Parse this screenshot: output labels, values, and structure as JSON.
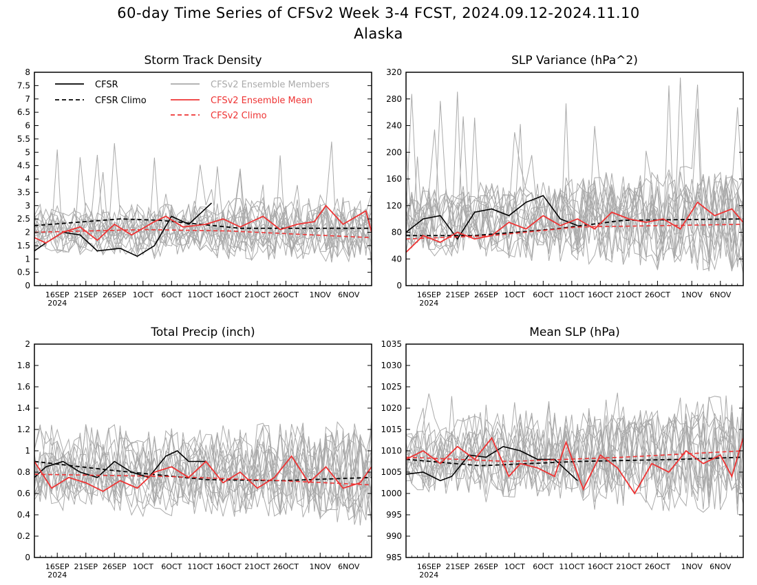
{
  "figure": {
    "title_line1": "60-day Time Series of CFSv2 Week 3-4 FCST, 2024.09.12-2024.11.10",
    "title_line2": "Alaska"
  },
  "legend": {
    "cfsr": "CFSR",
    "cfsr_climo": "CFSR Climo",
    "members": "CFSv2 Ensemble Members",
    "ens_mean": "CFSv2 Ensemble Mean",
    "cfsv2_climo": "CFSv2 Climo"
  },
  "colors": {
    "cfsr": "#000000",
    "members": "#aaaaaa",
    "ens_mean": "#ee3333",
    "cfsv2_climo": "#ee3333"
  },
  "x_axis": {
    "start": "2024-09-12",
    "end": "2024-11-10",
    "tick_labels": [
      "16SEP",
      "21SEP",
      "26SEP",
      "1OCT",
      "6OCT",
      "11OCT",
      "16OCT",
      "21OCT",
      "26OCT",
      "1NOV",
      "6NOV"
    ],
    "year_label": "2024"
  },
  "chart_data": [
    {
      "type": "line",
      "title": "Storm Track Density",
      "ylim": [
        0,
        8
      ],
      "yticks": [
        "0",
        "0.5",
        "1",
        "1.5",
        "2",
        "2.5",
        "3",
        "3.5",
        "4",
        "4.5",
        "5",
        "5.5",
        "6",
        "6.5",
        "7",
        "7.5",
        "8"
      ],
      "legend_placement": "top",
      "member_band": [
        1.2,
        3.0
      ],
      "member_peak": 5.5,
      "series": [
        {
          "name": "CFSR",
          "role": "cfsr",
          "x": [
            "2024-09-12",
            "2024-09-14",
            "2024-09-17",
            "2024-09-20",
            "2024-09-23",
            "2024-09-27",
            "2024-09-30",
            "2024-10-03",
            "2024-10-06",
            "2024-10-09",
            "2024-10-13"
          ],
          "values": [
            1.3,
            1.6,
            2.0,
            1.9,
            1.3,
            1.4,
            1.1,
            1.5,
            2.6,
            2.3,
            3.1
          ]
        },
        {
          "name": "CFSR Climo",
          "role": "cfsr_climo",
          "x": [
            "2024-09-12",
            "2024-09-27",
            "2024-10-04",
            "2024-10-18",
            "2024-11-10"
          ],
          "values": [
            2.25,
            2.5,
            2.45,
            2.15,
            2.15
          ]
        },
        {
          "name": "CFSv2 Ensemble Mean",
          "role": "ens_mean",
          "x": [
            "2024-09-12",
            "2024-09-14",
            "2024-09-17",
            "2024-09-20",
            "2024-09-23",
            "2024-09-26",
            "2024-09-29",
            "2024-10-03",
            "2024-10-05",
            "2024-10-08",
            "2024-10-12",
            "2024-10-15",
            "2024-10-18",
            "2024-10-22",
            "2024-10-25",
            "2024-10-28",
            "2024-10-31",
            "2024-11-02",
            "2024-11-05",
            "2024-11-09",
            "2024-11-10"
          ],
          "values": [
            1.8,
            1.6,
            2.0,
            2.2,
            1.7,
            2.3,
            1.9,
            2.4,
            2.6,
            2.2,
            2.3,
            2.5,
            2.2,
            2.6,
            2.1,
            2.3,
            2.4,
            3.0,
            2.3,
            2.8,
            2.0
          ]
        },
        {
          "name": "CFSv2 Climo",
          "role": "cfsv2_climo",
          "x": [
            "2024-09-12",
            "2024-10-01",
            "2024-10-16",
            "2024-11-10"
          ],
          "values": [
            2.0,
            2.1,
            2.05,
            1.8
          ]
        }
      ]
    },
    {
      "type": "line",
      "title": "SLP Variance (hPa^2)",
      "ylim": [
        0,
        320
      ],
      "yticks": [
        "0",
        "40",
        "80",
        "120",
        "160",
        "200",
        "240",
        "280",
        "320"
      ],
      "member_band": [
        45,
        160
      ],
      "member_peak": 320,
      "series": [
        {
          "name": "CFSR",
          "role": "cfsr",
          "x": [
            "2024-09-12",
            "2024-09-15",
            "2024-09-18",
            "2024-09-21",
            "2024-09-24",
            "2024-09-27",
            "2024-09-30",
            "2024-10-03",
            "2024-10-06",
            "2024-10-09",
            "2024-10-12"
          ],
          "values": [
            80,
            100,
            105,
            70,
            110,
            115,
            105,
            125,
            135,
            100,
            90
          ]
        },
        {
          "name": "CFSR Climo",
          "role": "cfsr_climo",
          "x": [
            "2024-09-12",
            "2024-09-24",
            "2024-10-08",
            "2024-10-20",
            "2024-11-10"
          ],
          "values": [
            75,
            75,
            85,
            98,
            100
          ]
        },
        {
          "name": "CFSv2 Ensemble Mean",
          "role": "ens_mean",
          "x": [
            "2024-09-12",
            "2024-09-15",
            "2024-09-18",
            "2024-09-21",
            "2024-09-24",
            "2024-09-27",
            "2024-09-30",
            "2024-10-03",
            "2024-10-06",
            "2024-10-09",
            "2024-10-12",
            "2024-10-15",
            "2024-10-18",
            "2024-10-21",
            "2024-10-24",
            "2024-10-27",
            "2024-10-30",
            "2024-11-02",
            "2024-11-05",
            "2024-11-08",
            "2024-11-10"
          ],
          "values": [
            50,
            75,
            65,
            80,
            70,
            75,
            95,
            85,
            105,
            90,
            100,
            85,
            110,
            100,
            95,
            100,
            85,
            125,
            105,
            115,
            95
          ]
        },
        {
          "name": "CFSv2 Climo",
          "role": "cfsv2_climo",
          "x": [
            "2024-09-12",
            "2024-09-27",
            "2024-10-12",
            "2024-11-10"
          ],
          "values": [
            70,
            75,
            88,
            92
          ]
        }
      ]
    },
    {
      "type": "line",
      "title": "Total Precip (inch)",
      "ylim": [
        0,
        2
      ],
      "yticks": [
        "0",
        "0.2",
        "0.4",
        "0.6",
        "0.8",
        "1",
        "1.2",
        "1.4",
        "1.6",
        "1.8",
        "2"
      ],
      "member_band": [
        0.45,
        1.15
      ],
      "member_peak": 1.25,
      "series": [
        {
          "name": "CFSR",
          "role": "cfsr",
          "x": [
            "2024-09-12",
            "2024-09-14",
            "2024-09-17",
            "2024-09-20",
            "2024-09-23",
            "2024-09-26",
            "2024-09-29",
            "2024-10-02",
            "2024-10-05",
            "2024-10-07",
            "2024-10-09",
            "2024-10-12"
          ],
          "values": [
            0.75,
            0.85,
            0.9,
            0.8,
            0.75,
            0.9,
            0.8,
            0.75,
            0.95,
            1.0,
            0.9,
            0.9
          ]
        },
        {
          "name": "CFSR Climo",
          "role": "cfsr_climo",
          "x": [
            "2024-09-12",
            "2024-09-25",
            "2024-10-12",
            "2024-10-25",
            "2024-11-10"
          ],
          "values": [
            0.9,
            0.82,
            0.73,
            0.72,
            0.75
          ]
        },
        {
          "name": "CFSv2 Ensemble Mean",
          "role": "ens_mean",
          "x": [
            "2024-09-12",
            "2024-09-15",
            "2024-09-18",
            "2024-09-21",
            "2024-09-24",
            "2024-09-27",
            "2024-09-30",
            "2024-10-03",
            "2024-10-06",
            "2024-10-09",
            "2024-10-12",
            "2024-10-15",
            "2024-10-18",
            "2024-10-21",
            "2024-10-24",
            "2024-10-27",
            "2024-10-30",
            "2024-11-02",
            "2024-11-05",
            "2024-11-08",
            "2024-11-10"
          ],
          "values": [
            0.9,
            0.65,
            0.75,
            0.7,
            0.62,
            0.72,
            0.65,
            0.8,
            0.85,
            0.75,
            0.9,
            0.7,
            0.8,
            0.65,
            0.75,
            0.95,
            0.7,
            0.85,
            0.65,
            0.7,
            0.85
          ]
        },
        {
          "name": "CFSv2 Climo",
          "role": "cfsv2_climo",
          "x": [
            "2024-09-12",
            "2024-10-05",
            "2024-10-25",
            "2024-11-10"
          ],
          "values": [
            0.78,
            0.76,
            0.72,
            0.68
          ]
        }
      ]
    },
    {
      "type": "line",
      "title": "Mean SLP (hPa)",
      "ylim": [
        985,
        1035
      ],
      "yticks": [
        "985",
        "990",
        "995",
        "1000",
        "1005",
        "1010",
        "1015",
        "1020",
        "1025",
        "1030",
        "1035"
      ],
      "member_band": [
        999,
        1018
      ],
      "member_peak": 1024,
      "series": [
        {
          "name": "CFSR",
          "role": "cfsr",
          "x": [
            "2024-09-12",
            "2024-09-15",
            "2024-09-18",
            "2024-09-20",
            "2024-09-23",
            "2024-09-26",
            "2024-09-29",
            "2024-10-02",
            "2024-10-05",
            "2024-10-08",
            "2024-10-12"
          ],
          "values": [
            1004.5,
            1005,
            1003,
            1004,
            1009,
            1008.5,
            1011,
            1010,
            1008,
            1008,
            1003
          ]
        },
        {
          "name": "CFSR Climo",
          "role": "cfsr_climo",
          "x": [
            "2024-09-12",
            "2024-09-25",
            "2024-10-12",
            "2024-10-30",
            "2024-11-10"
          ],
          "values": [
            1008,
            1006.5,
            1007.5,
            1008,
            1008.5
          ]
        },
        {
          "name": "CFSv2 Ensemble Mean",
          "role": "ens_mean",
          "x": [
            "2024-09-12",
            "2024-09-15",
            "2024-09-18",
            "2024-09-21",
            "2024-09-24",
            "2024-09-27",
            "2024-09-30",
            "2024-10-02",
            "2024-10-05",
            "2024-10-08",
            "2024-10-10",
            "2024-10-13",
            "2024-10-16",
            "2024-10-19",
            "2024-10-22",
            "2024-10-25",
            "2024-10-28",
            "2024-10-31",
            "2024-11-03",
            "2024-11-06",
            "2024-11-08",
            "2024-11-10"
          ],
          "values": [
            1008,
            1010,
            1007,
            1011,
            1008,
            1013,
            1004,
            1007,
            1006,
            1004,
            1012,
            1001,
            1009,
            1006,
            1000,
            1007,
            1005,
            1010,
            1007,
            1009,
            1004,
            1013
          ]
        },
        {
          "name": "CFSv2 Climo",
          "role": "cfsv2_climo",
          "x": [
            "2024-09-12",
            "2024-09-30",
            "2024-10-20",
            "2024-11-10"
          ],
          "values": [
            1008.5,
            1007.5,
            1008.5,
            1010
          ]
        }
      ]
    }
  ]
}
